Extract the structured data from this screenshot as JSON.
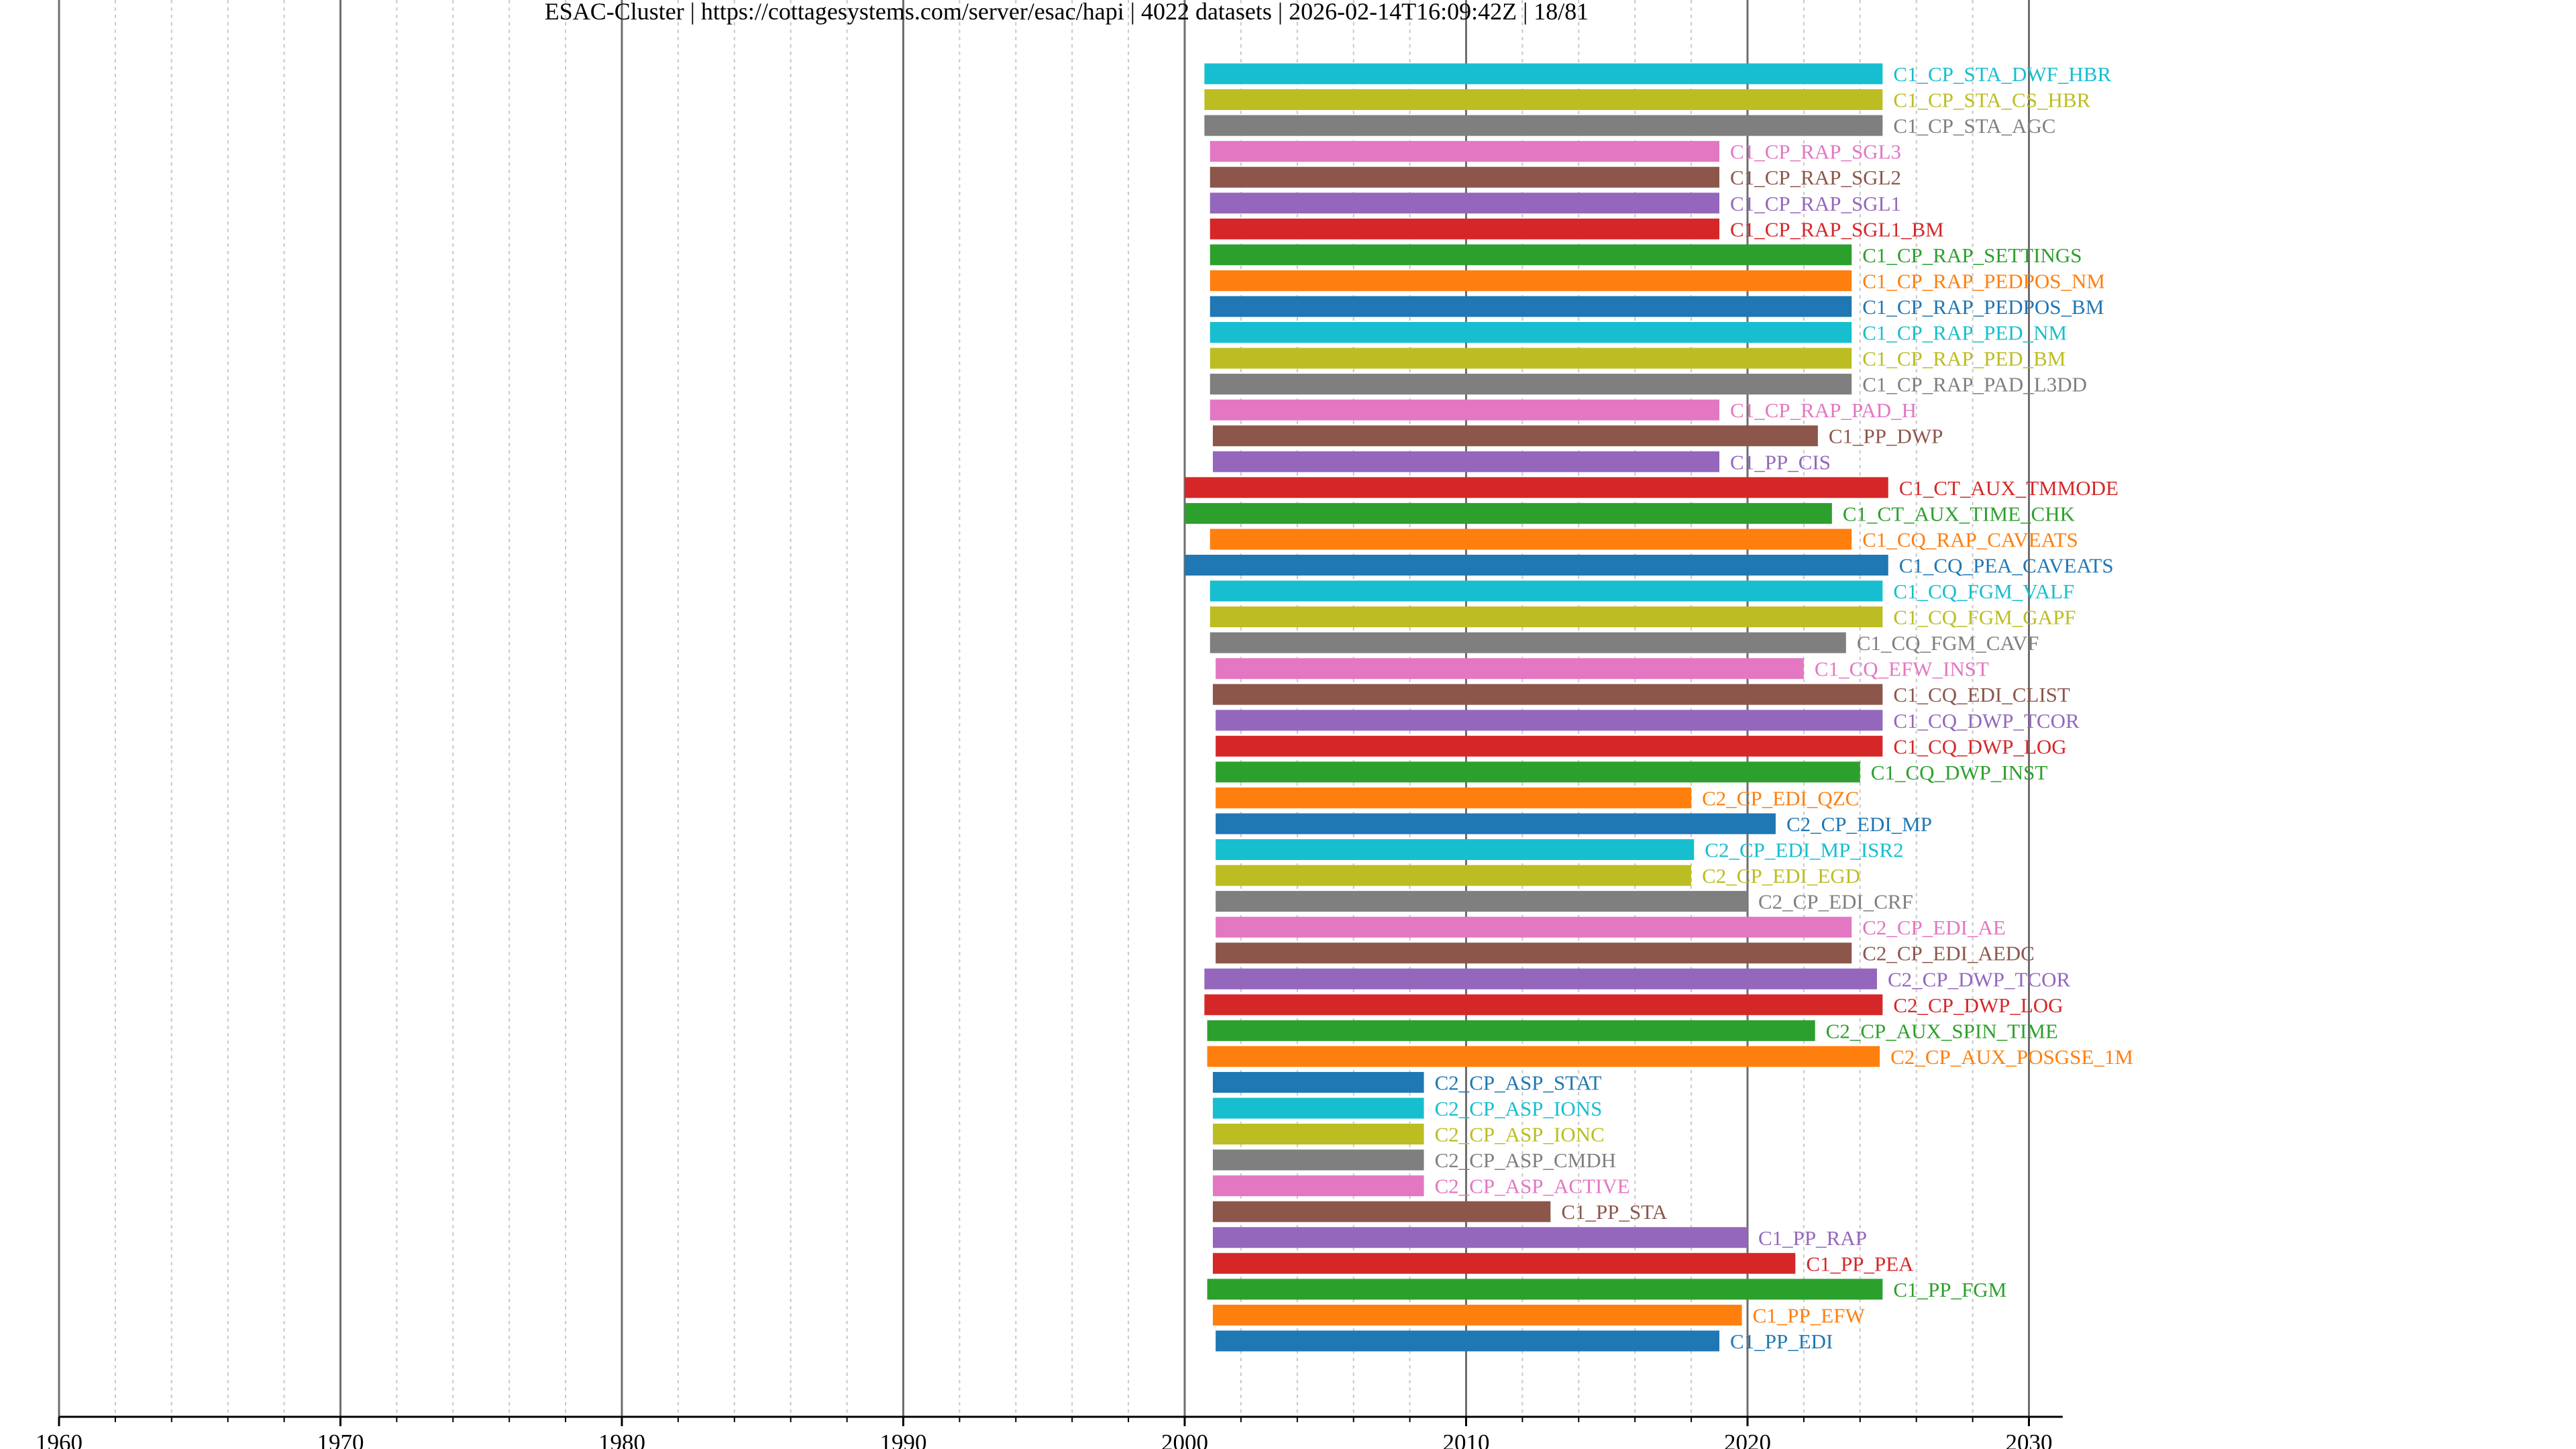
{
  "chart_data": {
    "type": "bar",
    "orientation": "horizontal-timeline",
    "title": "ESAC-Cluster | https://cottagesystems.com/server/esac/hapi | 4022 datasets | 2026-02-14T16:09:42Z | 18/81",
    "xlabel": "",
    "ylabel": "",
    "xlim": [
      1960,
      2031.2
    ],
    "x_ticks": [
      1960,
      1970,
      1980,
      1990,
      2000,
      2010,
      2020,
      2030
    ],
    "minor_tick_step": 2,
    "grid": true,
    "colors": {
      "blue": "#1f77b4",
      "orange": "#ff7f0e",
      "green": "#2ca02c",
      "red": "#d62728",
      "purple": "#9467bd",
      "brown": "#8c564b",
      "pink": "#e377c2",
      "gray": "#7f7f7f",
      "olive": "#bcbd22",
      "cyan": "#17becf"
    },
    "datasets": [
      {
        "name": "C1_CP_STA_DWF_HBR",
        "start": 2000.7,
        "stop": 2024.8,
        "color": "cyan"
      },
      {
        "name": "C1_CP_STA_CS_HBR",
        "start": 2000.7,
        "stop": 2024.8,
        "color": "olive"
      },
      {
        "name": "C1_CP_STA_AGC",
        "start": 2000.7,
        "stop": 2024.8,
        "color": "gray"
      },
      {
        "name": "C1_CP_RAP_SGL3",
        "start": 2000.9,
        "stop": 2019.0,
        "color": "pink"
      },
      {
        "name": "C1_CP_RAP_SGL2",
        "start": 2000.9,
        "stop": 2019.0,
        "color": "brown"
      },
      {
        "name": "C1_CP_RAP_SGL1",
        "start": 2000.9,
        "stop": 2019.0,
        "color": "purple"
      },
      {
        "name": "C1_CP_RAP_SGL1_BM",
        "start": 2000.9,
        "stop": 2019.0,
        "color": "red"
      },
      {
        "name": "C1_CP_RAP_SETTINGS",
        "start": 2000.9,
        "stop": 2023.7,
        "color": "green"
      },
      {
        "name": "C1_CP_RAP_PEDPOS_NM",
        "start": 2000.9,
        "stop": 2023.7,
        "color": "orange"
      },
      {
        "name": "C1_CP_RAP_PEDPOS_BM",
        "start": 2000.9,
        "stop": 2023.7,
        "color": "blue"
      },
      {
        "name": "C1_CP_RAP_PED_NM",
        "start": 2000.9,
        "stop": 2023.7,
        "color": "cyan"
      },
      {
        "name": "C1_CP_RAP_PED_BM",
        "start": 2000.9,
        "stop": 2023.7,
        "color": "olive"
      },
      {
        "name": "C1_CP_RAP_PAD_L3DD",
        "start": 2000.9,
        "stop": 2023.7,
        "color": "gray"
      },
      {
        "name": "C1_CP_RAP_PAD_H",
        "start": 2000.9,
        "stop": 2019.0,
        "color": "pink"
      },
      {
        "name": "C1_PP_DWP",
        "start": 2001.0,
        "stop": 2022.5,
        "color": "brown"
      },
      {
        "name": "C1_PP_CIS",
        "start": 2001.0,
        "stop": 2019.0,
        "color": "purple"
      },
      {
        "name": "C1_CT_AUX_TMMODE",
        "start": 2000.0,
        "stop": 2025.0,
        "color": "red"
      },
      {
        "name": "C1_CT_AUX_TIME_CHK",
        "start": 2000.0,
        "stop": 2023.0,
        "color": "green"
      },
      {
        "name": "C1_CQ_RAP_CAVEATS",
        "start": 2000.9,
        "stop": 2023.7,
        "color": "orange"
      },
      {
        "name": "C1_CQ_PEA_CAVEATS",
        "start": 2000.0,
        "stop": 2025.0,
        "color": "blue"
      },
      {
        "name": "C1_CQ_FGM_VALF",
        "start": 2000.9,
        "stop": 2024.8,
        "color": "cyan"
      },
      {
        "name": "C1_CQ_FGM_GAPF",
        "start": 2000.9,
        "stop": 2024.8,
        "color": "olive"
      },
      {
        "name": "C1_CQ_FGM_CAVF",
        "start": 2000.9,
        "stop": 2023.5,
        "color": "gray"
      },
      {
        "name": "C1_CQ_EFW_INST",
        "start": 2001.1,
        "stop": 2022.0,
        "color": "pink"
      },
      {
        "name": "C1_CQ_EDI_CLIST",
        "start": 2001.0,
        "stop": 2024.8,
        "color": "brown"
      },
      {
        "name": "C1_CQ_DWP_TCOR",
        "start": 2001.1,
        "stop": 2024.8,
        "color": "purple"
      },
      {
        "name": "C1_CQ_DWP_LOG",
        "start": 2001.1,
        "stop": 2024.8,
        "color": "red"
      },
      {
        "name": "C1_CQ_DWP_INST",
        "start": 2001.1,
        "stop": 2024.0,
        "color": "green"
      },
      {
        "name": "C2_CP_EDI_QZC",
        "start": 2001.1,
        "stop": 2018.0,
        "color": "orange"
      },
      {
        "name": "C2_CP_EDI_MP",
        "start": 2001.1,
        "stop": 2021.0,
        "color": "blue"
      },
      {
        "name": "C2_CP_EDI_MP_ISR2",
        "start": 2001.1,
        "stop": 2018.1,
        "color": "cyan"
      },
      {
        "name": "C2_CP_EDI_EGD",
        "start": 2001.1,
        "stop": 2018.0,
        "color": "olive"
      },
      {
        "name": "C2_CP_EDI_CRF",
        "start": 2001.1,
        "stop": 2020.0,
        "color": "gray"
      },
      {
        "name": "C2_CP_EDI_AE",
        "start": 2001.1,
        "stop": 2023.7,
        "color": "pink"
      },
      {
        "name": "C2_CP_EDI_AEDC",
        "start": 2001.1,
        "stop": 2023.7,
        "color": "brown"
      },
      {
        "name": "C2_CP_DWP_TCOR",
        "start": 2000.7,
        "stop": 2024.6,
        "color": "purple"
      },
      {
        "name": "C2_CP_DWP_LOG",
        "start": 2000.7,
        "stop": 2024.8,
        "color": "red"
      },
      {
        "name": "C2_CP_AUX_SPIN_TIME",
        "start": 2000.8,
        "stop": 2022.4,
        "color": "green"
      },
      {
        "name": "C2_CP_AUX_POSGSE_1M",
        "start": 2000.8,
        "stop": 2024.7,
        "color": "orange"
      },
      {
        "name": "C2_CP_ASP_STAT",
        "start": 2001.0,
        "stop": 2008.5,
        "color": "blue"
      },
      {
        "name": "C2_CP_ASP_IONS",
        "start": 2001.0,
        "stop": 2008.5,
        "color": "cyan"
      },
      {
        "name": "C2_CP_ASP_IONC",
        "start": 2001.0,
        "stop": 2008.5,
        "color": "olive"
      },
      {
        "name": "C2_CP_ASP_CMDH",
        "start": 2001.0,
        "stop": 2008.5,
        "color": "gray"
      },
      {
        "name": "C2_CP_ASP_ACTIVE",
        "start": 2001.0,
        "stop": 2008.5,
        "color": "pink"
      },
      {
        "name": "C1_PP_STA",
        "start": 2001.0,
        "stop": 2013.0,
        "color": "brown"
      },
      {
        "name": "C1_PP_RAP",
        "start": 2001.0,
        "stop": 2020.0,
        "color": "purple"
      },
      {
        "name": "C1_PP_PEA",
        "start": 2001.0,
        "stop": 2021.7,
        "color": "red"
      },
      {
        "name": "C1_PP_FGM",
        "start": 2000.8,
        "stop": 2024.8,
        "color": "green"
      },
      {
        "name": "C1_PP_EFW",
        "start": 2001.0,
        "stop": 2019.8,
        "color": "orange"
      },
      {
        "name": "C1_PP_EDI",
        "start": 2001.1,
        "stop": 2019.0,
        "color": "blue"
      }
    ]
  }
}
